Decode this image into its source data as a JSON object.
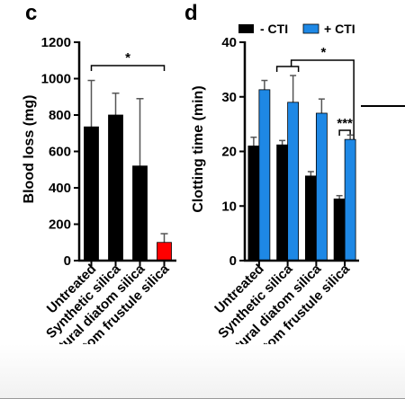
{
  "chart_data": [
    {
      "type": "bar",
      "panel_label": "c",
      "ylabel": "Blood loss (mg)",
      "xlabel": "",
      "ylim": [
        0,
        1200
      ],
      "yticks": [
        0,
        200,
        400,
        600,
        800,
        1000,
        1200
      ],
      "categories": [
        "Untreated",
        "Synthetic silica",
        "Natural diatom silica",
        "Diatom frustule silica"
      ],
      "values": [
        735,
        800,
        520,
        100
      ],
      "errors": [
        255,
        120,
        370,
        48
      ],
      "bar_colors": [
        "#000000",
        "#000000",
        "#000000",
        "#ff0000"
      ],
      "significance": [
        {
          "from": 0,
          "to": 3,
          "label": "*"
        }
      ],
      "grid": false,
      "legend": "none"
    },
    {
      "type": "bar",
      "panel_label": "d",
      "ylabel": "Clotting time (min)",
      "xlabel": "",
      "ylim": [
        0,
        40
      ],
      "yticks": [
        0,
        10,
        20,
        30,
        40
      ],
      "categories": [
        "Untreated",
        "Synthetic silica",
        "Natural diatom silica",
        "Diatom frustule silica"
      ],
      "series": [
        {
          "name": "- CTI",
          "color": "#000000",
          "values": [
            21,
            21.2,
            15.5,
            11.3
          ],
          "errors": [
            1.6,
            0.8,
            0.8,
            0.6
          ]
        },
        {
          "name": "+ CTI",
          "color": "#1e88e5",
          "values": [
            31.3,
            29,
            27,
            22.2
          ],
          "errors": [
            1.7,
            4.9,
            2.6,
            0.8
          ]
        }
      ],
      "significance": [
        {
          "from": 1,
          "to": 3,
          "label": "*"
        },
        {
          "category": 3,
          "label": "***"
        }
      ],
      "grid": false,
      "legend": "top"
    }
  ]
}
